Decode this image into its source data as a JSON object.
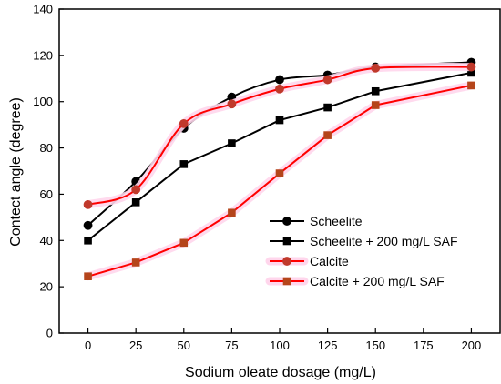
{
  "chart_data": {
    "type": "line",
    "title": "",
    "xlabel": "Sodium oleate dosage (mg/L)",
    "ylabel": "Contect angle (degree)",
    "xlim": [
      -15,
      215
    ],
    "ylim": [
      0,
      140
    ],
    "x_ticks": [
      0,
      25,
      50,
      75,
      100,
      125,
      150,
      175,
      200
    ],
    "y_ticks": [
      0,
      20,
      40,
      60,
      80,
      100,
      120,
      140
    ],
    "grid": false,
    "legend_position": "bottom-right",
    "x": [
      0,
      25,
      50,
      75,
      100,
      125,
      150,
      200
    ],
    "series": [
      {
        "name": "Scheelite",
        "values": [
          46.5,
          65.5,
          88.5,
          102,
          109.5,
          111.5,
          115,
          117
        ],
        "color": "#000000",
        "marker": "circle",
        "smooth": true
      },
      {
        "name": "Scheelite + 200 mg/L SAF",
        "values": [
          40,
          56.5,
          73,
          82,
          92,
          97.5,
          104.5,
          112.5
        ],
        "color": "#000000",
        "marker": "square",
        "smooth": false
      },
      {
        "name": "Calcite",
        "values": [
          55.5,
          62,
          90.5,
          99,
          105.5,
          109.5,
          114.5,
          115
        ],
        "color": "#ff0000",
        "marker_color": "#c0392b",
        "marker": "circle",
        "smooth": true
      },
      {
        "name": "Calcite + 200 mg/L SAF",
        "values": [
          24.5,
          30.5,
          39,
          52,
          69,
          85.5,
          98.5,
          107
        ],
        "color": "#ff0000",
        "marker_color": "#b5451b",
        "marker": "square",
        "smooth": false
      }
    ]
  }
}
